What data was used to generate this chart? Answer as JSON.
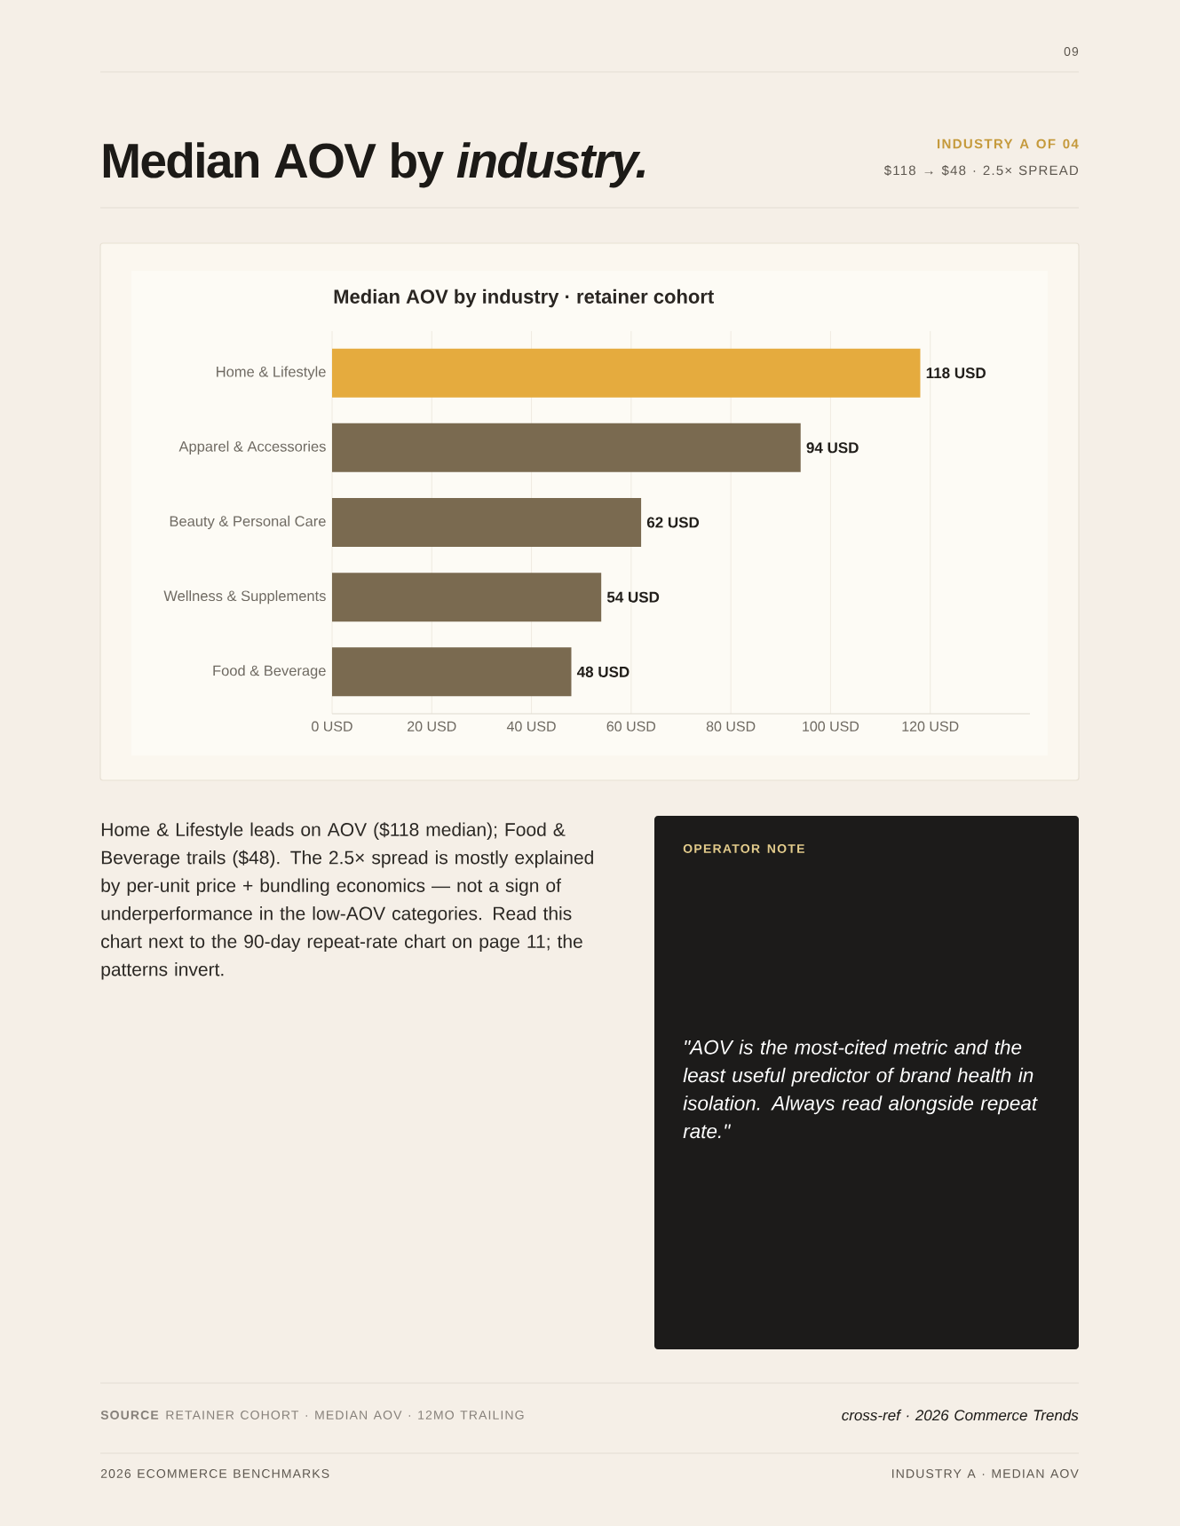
{
  "chart_data": {
    "type": "bar",
    "orientation": "horizontal",
    "title": "Median AOV by *industry.*",
    "subtitle": "Median AOV by industry · retainer cohort",
    "categories": [
      "Home & Lifestyle",
      "Apparel & Accessories",
      "Beauty & Personal Care",
      "Wellness & Supplements",
      "Food & Beverage"
    ],
    "values": [
      118,
      94,
      62,
      54,
      48
    ],
    "colors": [
      "#e5ab3e",
      "#7a6a50",
      "#7a6a50",
      "#7a6a50",
      "#7a6a50"
    ],
    "value_labels": [
      "118 USD",
      "94 USD",
      "62 USD",
      "54 USD",
      "48 USD"
    ],
    "xlim": [
      0,
      140
    ],
    "xticks": [
      {
        "value": 0,
        "label": "0 USD"
      },
      {
        "value": 20,
        "label": "20 USD"
      },
      {
        "value": 40,
        "label": "40 USD"
      },
      {
        "value": 60,
        "label": "60 USD"
      },
      {
        "value": 80,
        "label": "80 USD"
      },
      {
        "value": 100,
        "label": "100 USD"
      },
      {
        "value": 120,
        "label": "120 USD"
      }
    ],
    "grid": "x",
    "annotations": [
      "09",
      "INDUSTRY A OF 04",
      "$118 → $48 · 2.5× SPREAD",
      "Home & Lifestyle leads on AOV ($118 median); Food & Beverage trails ($48). The 2.5× spread is mostly explained by per-unit price + bundling economics — not a sign of underperformance in the low-AOV categories. Read this chart next to the 90-day repeat-rate chart on page 11; the patterns invert.",
      "OPERATOR NOTE",
      "\"AOV is the most-cited metric and the least useful predictor of brand health in isolation. Always read alongside repeat rate.\"",
      "**SOURCE** RETAINER COHORT · MEDIAN AOV · 12MO TRAILING",
      "cross-ref · 2026 Commerce Trends",
      "2026 ECOMMERCE BENCHMARKS",
      "INDUSTRY A · MEDIAN AOV"
    ]
  }
}
